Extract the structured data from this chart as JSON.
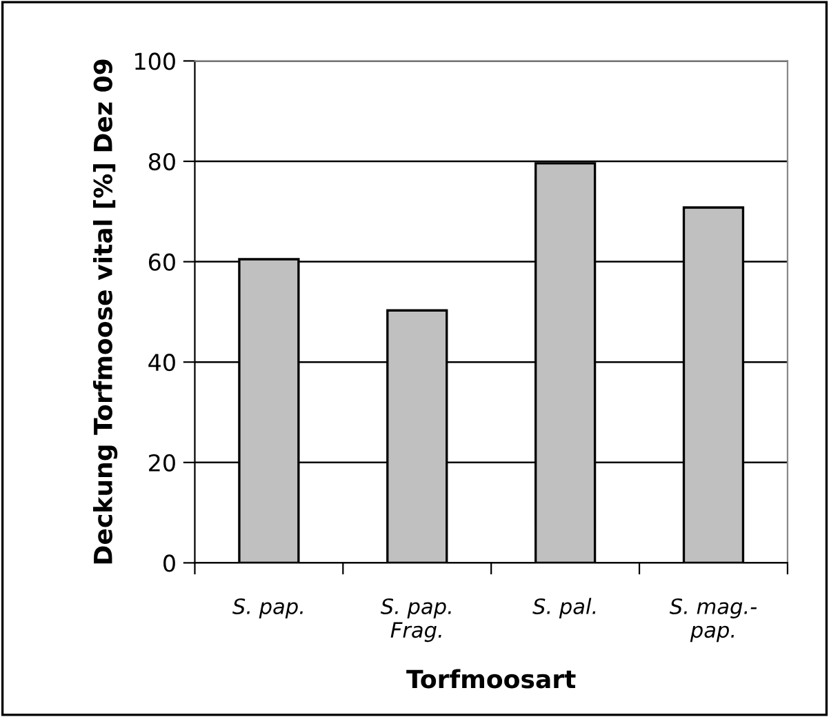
{
  "chart_data": {
    "type": "bar",
    "xlabel": "Torfmoosart",
    "ylabel": "Deckung Torfmoose vital [%] Dez 09",
    "categories": [
      "S. pap.",
      "S. pap.\nFrag.",
      "S. pal.",
      "S. mag.-\npap."
    ],
    "values": [
      60.5,
      50.3,
      79.6,
      70.8
    ],
    "color": "#c0c0c0",
    "ylim": [
      0,
      100
    ],
    "yticks": [
      0,
      20,
      40,
      60,
      80,
      100
    ],
    "grid": "y",
    "legend": false
  }
}
